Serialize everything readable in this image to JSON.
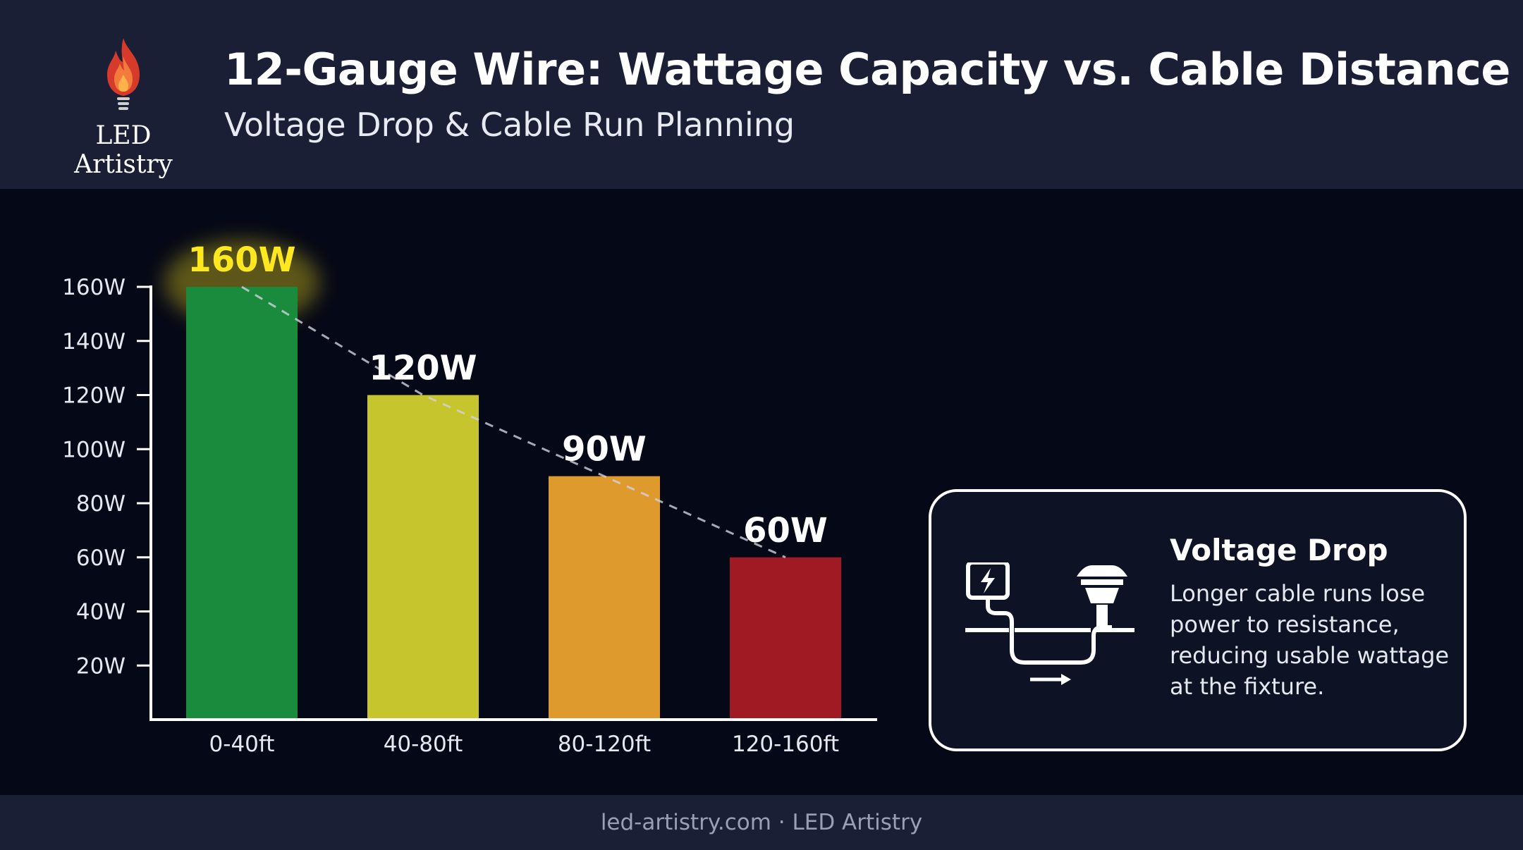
{
  "header": {
    "brand": "LED Artistry",
    "title": "12-Gauge Wire: Wattage Capacity vs. Cable Distance",
    "subtitle": "Voltage Drop & Cable Run Planning"
  },
  "chart_data": {
    "type": "bar",
    "categories": [
      "0-40ft",
      "40-80ft",
      "80-120ft",
      "120-160ft"
    ],
    "values": [
      160,
      120,
      90,
      60
    ],
    "data_labels": [
      "160W",
      "120W",
      "90W",
      "60W"
    ],
    "bar_colors": [
      "#1a8a3c",
      "#c6c52e",
      "#de9a2c",
      "#a01a24"
    ],
    "label_colors": [
      "#ffe81f",
      "#ffffff",
      "#ffffff",
      "#ffffff"
    ],
    "y_ticks": [
      20,
      40,
      60,
      80,
      100,
      120,
      140,
      160
    ],
    "y_tick_labels": [
      "20W",
      "40W",
      "60W",
      "80W",
      "100W",
      "120W",
      "140W",
      "160W"
    ],
    "ylim": [
      0,
      160
    ],
    "trend_line": true,
    "grid": false,
    "xlabel": "",
    "ylabel": ""
  },
  "info_card": {
    "title": "Voltage Drop",
    "body": "Longer cable runs lose power to resistance, reducing usable wattage at the fixture.",
    "icon": "power-to-fixture-icon"
  },
  "footer": {
    "text": "led-artistry.com · LED Artistry"
  }
}
